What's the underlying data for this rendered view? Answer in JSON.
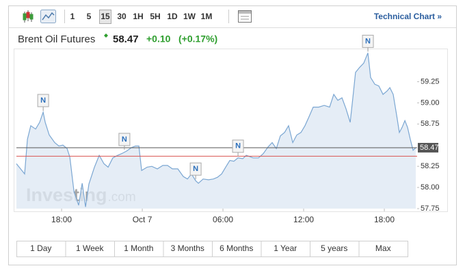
{
  "toolbar": {
    "intervals": [
      "1",
      "5",
      "15",
      "30",
      "1H",
      "5H",
      "1D",
      "1W",
      "1M"
    ],
    "selected": "15",
    "link": "Technical Chart »"
  },
  "chart_data": {
    "type": "line",
    "title": "Brent Oil Futures",
    "price": 58.47,
    "change": {
      "value": 0.1,
      "label": "+0.10"
    },
    "change_pct": {
      "value": 0.17,
      "label": "(+0.17%)"
    },
    "previous_close": 58.37,
    "color": "#7aa6d2",
    "fill": "#dfe9f4",
    "price_line_color": "#555555",
    "close_line_color": "#d9534f",
    "x": [
      14.64,
      14.95,
      15.25,
      15.46,
      15.71,
      16.07,
      16.37,
      16.63,
      16.78,
      17.08,
      17.49,
      17.8,
      18.1,
      18.41,
      18.61,
      18.92,
      19.27,
      19.53,
      19.78,
      20.03,
      20.44,
      20.8,
      21.15,
      21.46,
      21.81,
      22.17,
      22.47,
      22.83,
      23.19,
      23.49,
      23.75,
      23.95,
      24.36,
      24.71,
      25.12,
      25.53,
      25.88,
      26.24,
      26.64,
      27.05,
      27.36,
      27.66,
      27.97,
      28.17,
      28.53,
      28.93,
      29.29,
      29.59,
      29.9,
      30.2,
      30.51,
      30.81,
      31.12,
      31.47,
      31.73,
      32.24,
      32.64,
      33.0,
      33.36,
      33.66,
      33.97,
      34.27,
      34.58,
      34.88,
      35.19,
      35.49,
      35.8,
      36.1,
      36.41,
      36.71,
      37.12,
      37.53,
      37.93,
      38.24,
      38.54,
      38.85,
      39.15,
      39.46,
      39.66,
      39.86,
      40.17,
      40.47,
      40.78,
      40.98,
      41.29,
      41.59,
      41.9,
      42.2,
      42.41,
      42.66,
      42.92,
      43.12,
      43.32,
      43.53,
      43.73,
      43.93,
      44.14,
      44.34
    ],
    "values": [
      58.28,
      58.22,
      58.16,
      58.57,
      58.73,
      58.69,
      58.77,
      58.89,
      58.77,
      58.62,
      58.53,
      58.49,
      58.5,
      58.46,
      58.36,
      57.95,
      57.79,
      58.05,
      57.77,
      58.04,
      58.24,
      58.38,
      58.28,
      58.24,
      58.35,
      58.38,
      58.4,
      58.43,
      58.47,
      58.49,
      58.49,
      58.2,
      58.24,
      58.25,
      58.22,
      58.26,
      58.26,
      58.22,
      58.22,
      58.13,
      58.1,
      58.16,
      58.08,
      58.05,
      58.1,
      58.09,
      58.1,
      58.12,
      58.16,
      58.24,
      58.32,
      58.31,
      58.35,
      58.34,
      58.38,
      58.35,
      58.35,
      58.4,
      58.48,
      58.53,
      58.46,
      58.61,
      58.65,
      58.73,
      58.53,
      58.62,
      58.65,
      58.73,
      58.84,
      58.95,
      58.95,
      58.97,
      58.95,
      59.1,
      59.03,
      59.06,
      58.93,
      58.77,
      59.06,
      59.36,
      59.42,
      59.47,
      59.59,
      59.3,
      59.22,
      59.2,
      59.1,
      59.14,
      59.18,
      59.1,
      58.85,
      58.65,
      58.71,
      58.79,
      58.71,
      58.57,
      58.44,
      58.47
    ],
    "xlim": [
      14.64,
      44.44
    ],
    "ylim": [
      57.75,
      59.65
    ],
    "xticks": [
      {
        "value": 18,
        "label": "18:00"
      },
      {
        "value": 24,
        "label": "Oct 7"
      },
      {
        "value": 30,
        "label": "06:00"
      },
      {
        "value": 36,
        "label": "12:00"
      },
      {
        "value": 42,
        "label": "18:00"
      }
    ],
    "yticks": [
      57.75,
      {
        "value": 58,
        "label": "58.00"
      },
      58.25,
      58.75,
      {
        "value": 59,
        "label": "59.00"
      },
      59.25
    ],
    "annotations": [
      {
        "label": "N",
        "x": 16.63
      },
      {
        "label": "N",
        "x": 22.67
      },
      {
        "label": "N",
        "x": 27.97
      },
      {
        "label": "N",
        "x": 31.12
      },
      {
        "label": "N",
        "x": 40.78
      }
    ],
    "watermark": {
      "brand": "Investing",
      "suffix": ".com"
    }
  },
  "range_buttons": [
    "1 Day",
    "1 Week",
    "1 Month",
    "3 Months",
    "6 Months",
    "1 Year",
    "5 years",
    "Max"
  ]
}
